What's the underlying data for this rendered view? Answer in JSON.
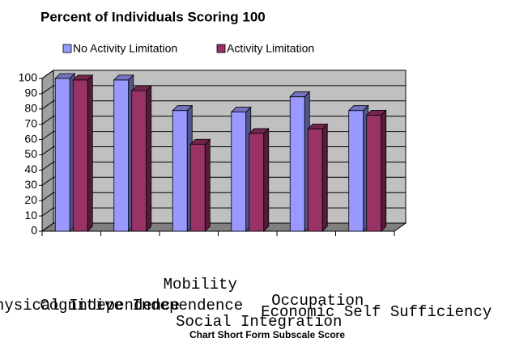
{
  "chart_data": {
    "type": "bar3d",
    "title": "Percent of Individuals Scoring 100",
    "x_label": "Chart Short Form Subscale Score",
    "categories": [
      "Physical Independence",
      "Cognitive Independence",
      "Mobility",
      "Social Integration",
      "Occupation",
      "Economic Self Sufficiency"
    ],
    "series": [
      {
        "name": "No Activity Limitation",
        "color": "#9999ff",
        "values": [
          100,
          99,
          79,
          78,
          88,
          79
        ]
      },
      {
        "name": "Activity Limitation",
        "color": "#993366",
        "values": [
          99,
          92,
          57,
          64,
          67,
          76
        ]
      }
    ],
    "ylim": [
      0,
      100
    ],
    "yticks": [
      0,
      10,
      20,
      30,
      40,
      50,
      60,
      70,
      80,
      90,
      100
    ],
    "grid": true
  }
}
